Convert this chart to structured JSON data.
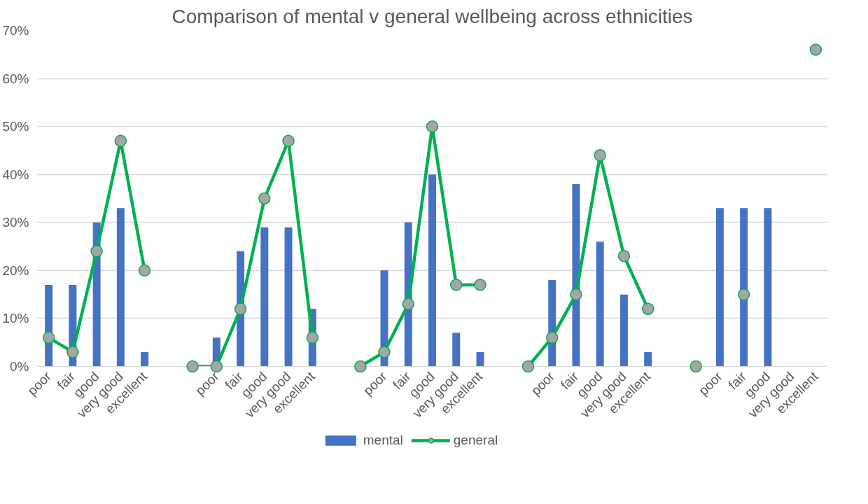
{
  "chart_data": {
    "type": "bar",
    "title": "Comparison of mental v general wellbeing across ethnicities",
    "categories": [
      "poor",
      "fair",
      "good",
      "very good",
      "excellent",
      null,
      null,
      "poor",
      "fair",
      "good",
      "very good",
      "excellent",
      null,
      null,
      "poor",
      "fair",
      "good",
      "very good",
      "excellent",
      null,
      null,
      "poor",
      "fair",
      "good",
      "very good",
      "excellent",
      null,
      null,
      "poor",
      "fair",
      "good",
      "very good",
      "excellent"
    ],
    "series": [
      {
        "name": "mental",
        "color": "#4472c4",
        "values": [
          17,
          17,
          30,
          33,
          3,
          null,
          null,
          6,
          24,
          29,
          29,
          12,
          null,
          null,
          20,
          30,
          40,
          7,
          3,
          null,
          null,
          18,
          38,
          26,
          15,
          3,
          null,
          null,
          33,
          33,
          33,
          null,
          null
        ]
      },
      {
        "name": "general",
        "type": "line",
        "color": "#00b050",
        "values": [
          6,
          3,
          24,
          47,
          20,
          null,
          0,
          0,
          12,
          35,
          47,
          6,
          null,
          0,
          3,
          13,
          50,
          17,
          17,
          null,
          0,
          6,
          15,
          44,
          23,
          12,
          null,
          0,
          null,
          15,
          null,
          null,
          66
        ]
      }
    ],
    "ylim": [
      0,
      70
    ],
    "yticks": [
      {
        "value": 0,
        "label": "0%"
      },
      {
        "value": 10,
        "label": "10%"
      },
      {
        "value": 20,
        "label": "20%"
      },
      {
        "value": 30,
        "label": "30%"
      },
      {
        "value": 40,
        "label": "40%"
      },
      {
        "value": 50,
        "label": "50%"
      },
      {
        "value": 60,
        "label": "60%"
      },
      {
        "value": 70,
        "label": "70%"
      }
    ],
    "grid": "y",
    "legend": "bottom",
    "marker": "circle",
    "line_style": "solid"
  }
}
